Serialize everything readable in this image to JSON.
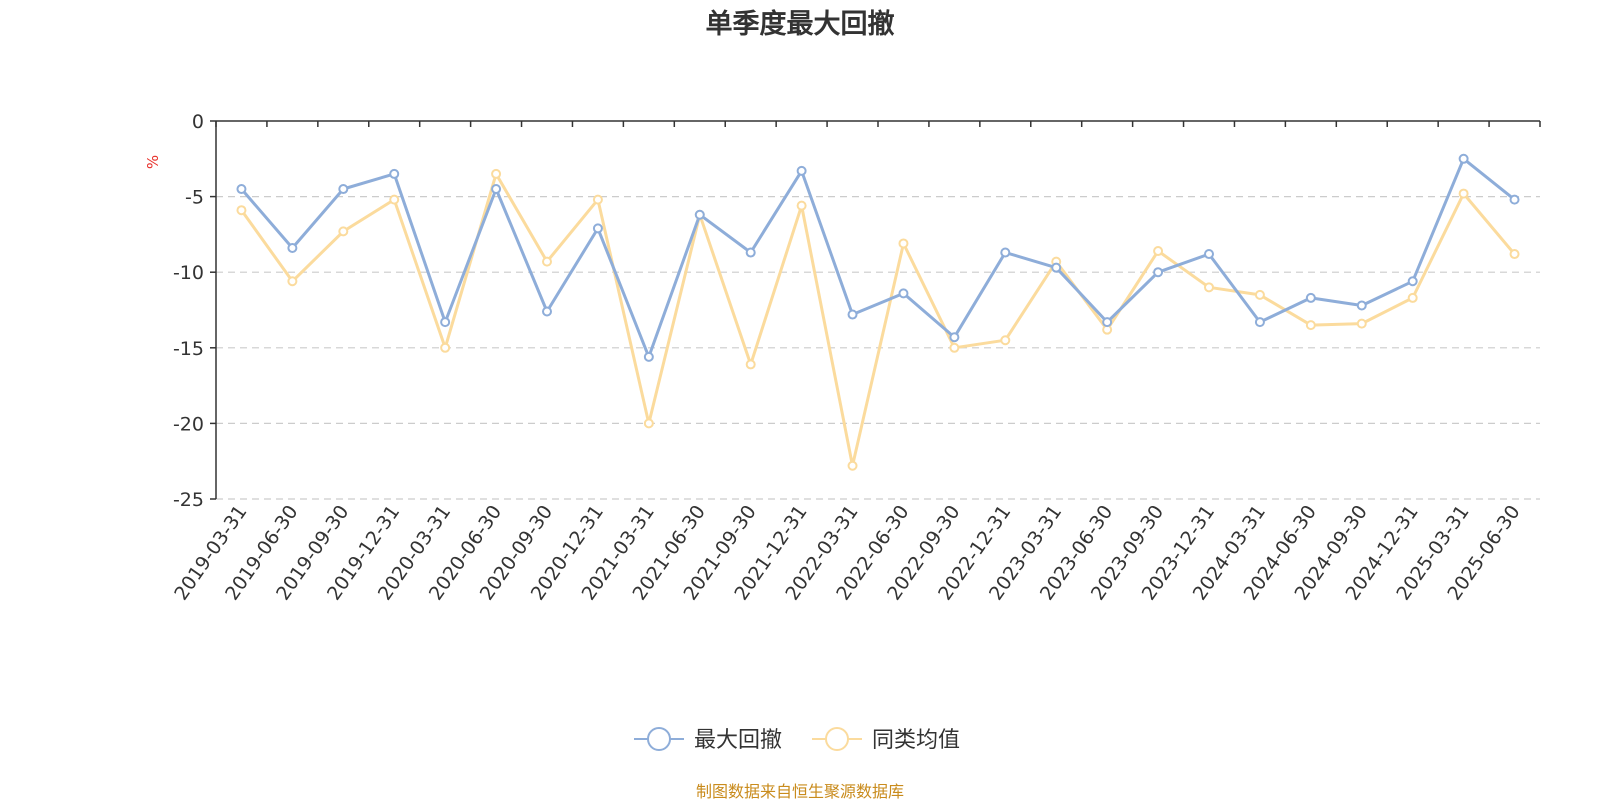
{
  "chart_data": {
    "type": "line",
    "title": "单季度最大回撤",
    "ylabel": "%",
    "ylim": [
      -25,
      0
    ],
    "yticks": [
      "0",
      "-5",
      "-10",
      "-15",
      "-20",
      "-25"
    ],
    "grid": true,
    "legend_position": "bottom-center",
    "categories": [
      "2019-03-31",
      "2019-06-30",
      "2019-09-30",
      "2019-12-31",
      "2020-03-31",
      "2020-06-30",
      "2020-09-30",
      "2020-12-31",
      "2021-03-31",
      "2021-06-30",
      "2021-09-30",
      "2021-12-31",
      "2022-03-31",
      "2022-06-30",
      "2022-09-30",
      "2022-12-31",
      "2023-03-31",
      "2023-06-30",
      "2023-09-30",
      "2023-12-31",
      "2024-03-31",
      "2024-06-30",
      "2024-09-30",
      "2024-12-31",
      "2025-03-31",
      "2025-06-30"
    ],
    "series": [
      {
        "name": "最大回撤",
        "color": "#8eadd9",
        "values": [
          -4.5,
          -8.4,
          -4.5,
          -3.5,
          -13.3,
          -4.5,
          -12.6,
          -7.1,
          -15.6,
          -6.2,
          -8.7,
          -3.3,
          -12.8,
          -11.4,
          -14.3,
          -8.7,
          -9.7,
          -13.3,
          -10.0,
          -8.8,
          -13.3,
          -11.7,
          -12.2,
          -10.6,
          -2.5,
          -5.2
        ]
      },
      {
        "name": "同类均值",
        "color": "#fbdb9d",
        "values": [
          -5.9,
          -10.6,
          -7.3,
          -5.2,
          -15.0,
          -3.5,
          -9.3,
          -5.2,
          -20.0,
          -6.2,
          -16.1,
          -5.6,
          -22.8,
          -8.1,
          -15.0,
          -14.5,
          -9.3,
          -13.8,
          -8.6,
          -11.0,
          -11.5,
          -13.5,
          -13.4,
          -11.7,
          -4.8,
          -8.8
        ]
      }
    ],
    "source_note": "制图数据来自恒生聚源数据库",
    "colors": {
      "axis": "#333333",
      "grid": "#cccccc",
      "unit": "#e8302a",
      "source": "#c98b1c"
    }
  }
}
